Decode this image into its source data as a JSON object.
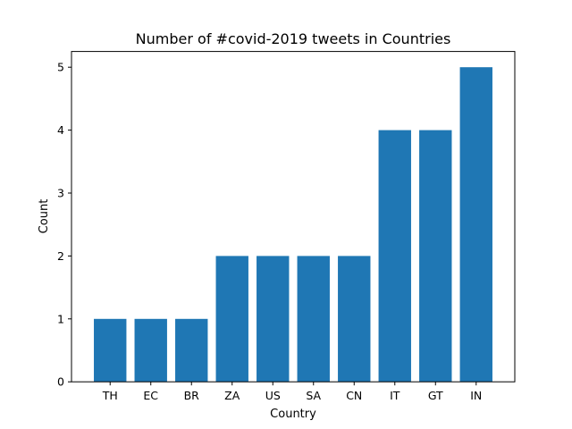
{
  "chart_data": {
    "type": "bar",
    "title": "Number of #covid-2019 tweets in Countries",
    "xlabel": "Country",
    "ylabel": "Count",
    "categories": [
      "TH",
      "EC",
      "BR",
      "ZA",
      "US",
      "SA",
      "CN",
      "IT",
      "GT",
      "IN"
    ],
    "values": [
      1,
      1,
      1,
      2,
      2,
      2,
      2,
      4,
      4,
      5
    ],
    "ylim": [
      0,
      5.25
    ],
    "yticks": [
      "0",
      "1",
      "2",
      "3",
      "4",
      "5"
    ],
    "grid": false,
    "bar_color": "#1f77b4"
  }
}
